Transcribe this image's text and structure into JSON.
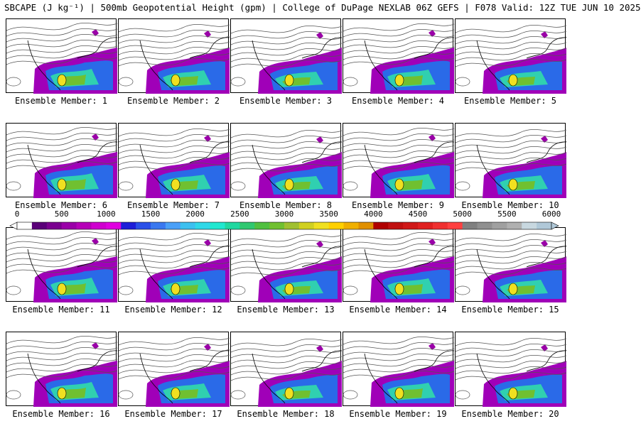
{
  "title": "SBCAPE (J kg⁻¹) | 500mb Geopotential Height (gpm) | College of DuPage NEXLAB 06Z GEFS | F078 Valid: 12Z TUE JUN 10 2025",
  "members": [
    {
      "label": "Ensemble Member: 1"
    },
    {
      "label": "Ensemble Member: 2"
    },
    {
      "label": "Ensemble Member: 3"
    },
    {
      "label": "Ensemble Member: 4"
    },
    {
      "label": "Ensemble Member: 5"
    },
    {
      "label": "Ensemble Member: 6"
    },
    {
      "label": "Ensemble Member: 7"
    },
    {
      "label": "Ensemble Member: 8"
    },
    {
      "label": "Ensemble Member: 9"
    },
    {
      "label": "Ensemble Member: 10"
    },
    {
      "label": "Ensemble Member: 11"
    },
    {
      "label": "Ensemble Member: 12"
    },
    {
      "label": "Ensemble Member: 13"
    },
    {
      "label": "Ensemble Member: 14"
    },
    {
      "label": "Ensemble Member: 15"
    },
    {
      "label": "Ensemble Member: 16"
    },
    {
      "label": "Ensemble Member: 17"
    },
    {
      "label": "Ensemble Member: 18"
    },
    {
      "label": "Ensemble Member: 19"
    },
    {
      "label": "Ensemble Member: 20"
    }
  ],
  "colorbar": {
    "min": 0,
    "max": 6000,
    "tick_labels": [
      "0",
      "500",
      "1000",
      "1500",
      "2000",
      "2500",
      "3000",
      "3500",
      "4000",
      "4500",
      "5000",
      "5500",
      "6000"
    ],
    "colors": [
      "#ffffff",
      "#5a0078",
      "#7a008f",
      "#9a00a8",
      "#b600b8",
      "#cf00cf",
      "#e000e0",
      "#1e1ed8",
      "#2a50e8",
      "#3a78f0",
      "#4aa0f8",
      "#3cc0f0",
      "#30d8e8",
      "#20e8d0",
      "#20d8a0",
      "#30c870",
      "#50c040",
      "#70c030",
      "#a0c030",
      "#d0d020",
      "#f0e020",
      "#ffd000",
      "#f0b000",
      "#e09000",
      "#b00000",
      "#c01010",
      "#d01818",
      "#e02020",
      "#f03030",
      "#ff4040",
      "#808080",
      "#909090",
      "#a0a0a0",
      "#b0b0b0",
      "#c8d8e0",
      "#b0c8d8"
    ]
  }
}
